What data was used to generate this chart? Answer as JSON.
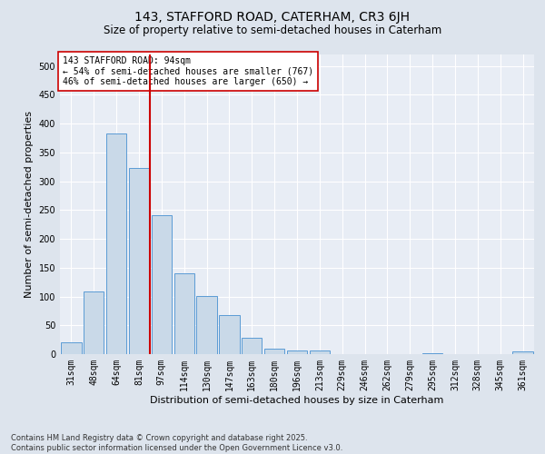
{
  "title1": "143, STAFFORD ROAD, CATERHAM, CR3 6JH",
  "title2": "Size of property relative to semi-detached houses in Caterham",
  "xlabel": "Distribution of semi-detached houses by size in Caterham",
  "ylabel": "Number of semi-detached properties",
  "categories": [
    "31sqm",
    "48sqm",
    "64sqm",
    "81sqm",
    "97sqm",
    "114sqm",
    "130sqm",
    "147sqm",
    "163sqm",
    "180sqm",
    "196sqm",
    "213sqm",
    "229sqm",
    "246sqm",
    "262sqm",
    "279sqm",
    "295sqm",
    "312sqm",
    "328sqm",
    "345sqm",
    "361sqm"
  ],
  "values": [
    20,
    108,
    383,
    323,
    241,
    140,
    101,
    68,
    29,
    10,
    6,
    6,
    0,
    0,
    0,
    0,
    2,
    0,
    0,
    0,
    4
  ],
  "bar_color": "#c9d9e8",
  "bar_edge_color": "#5b9bd5",
  "vline_x_idx": 4,
  "vline_color": "#cc0000",
  "annotation_text": "143 STAFFORD ROAD: 94sqm\n← 54% of semi-detached houses are smaller (767)\n46% of semi-detached houses are larger (650) →",
  "annotation_box_color": "#ffffff",
  "annotation_box_edge": "#cc0000",
  "footer": "Contains HM Land Registry data © Crown copyright and database right 2025.\nContains public sector information licensed under the Open Government Licence v3.0.",
  "ylim": [
    0,
    520
  ],
  "yticks": [
    0,
    50,
    100,
    150,
    200,
    250,
    300,
    350,
    400,
    450,
    500
  ],
  "bg_color": "#dde4ed",
  "plot_bg_color": "#e8edf5",
  "grid_color": "#ffffff",
  "title1_fontsize": 10,
  "title2_fontsize": 8.5,
  "xlabel_fontsize": 8,
  "ylabel_fontsize": 8,
  "tick_fontsize": 7,
  "footer_fontsize": 6
}
